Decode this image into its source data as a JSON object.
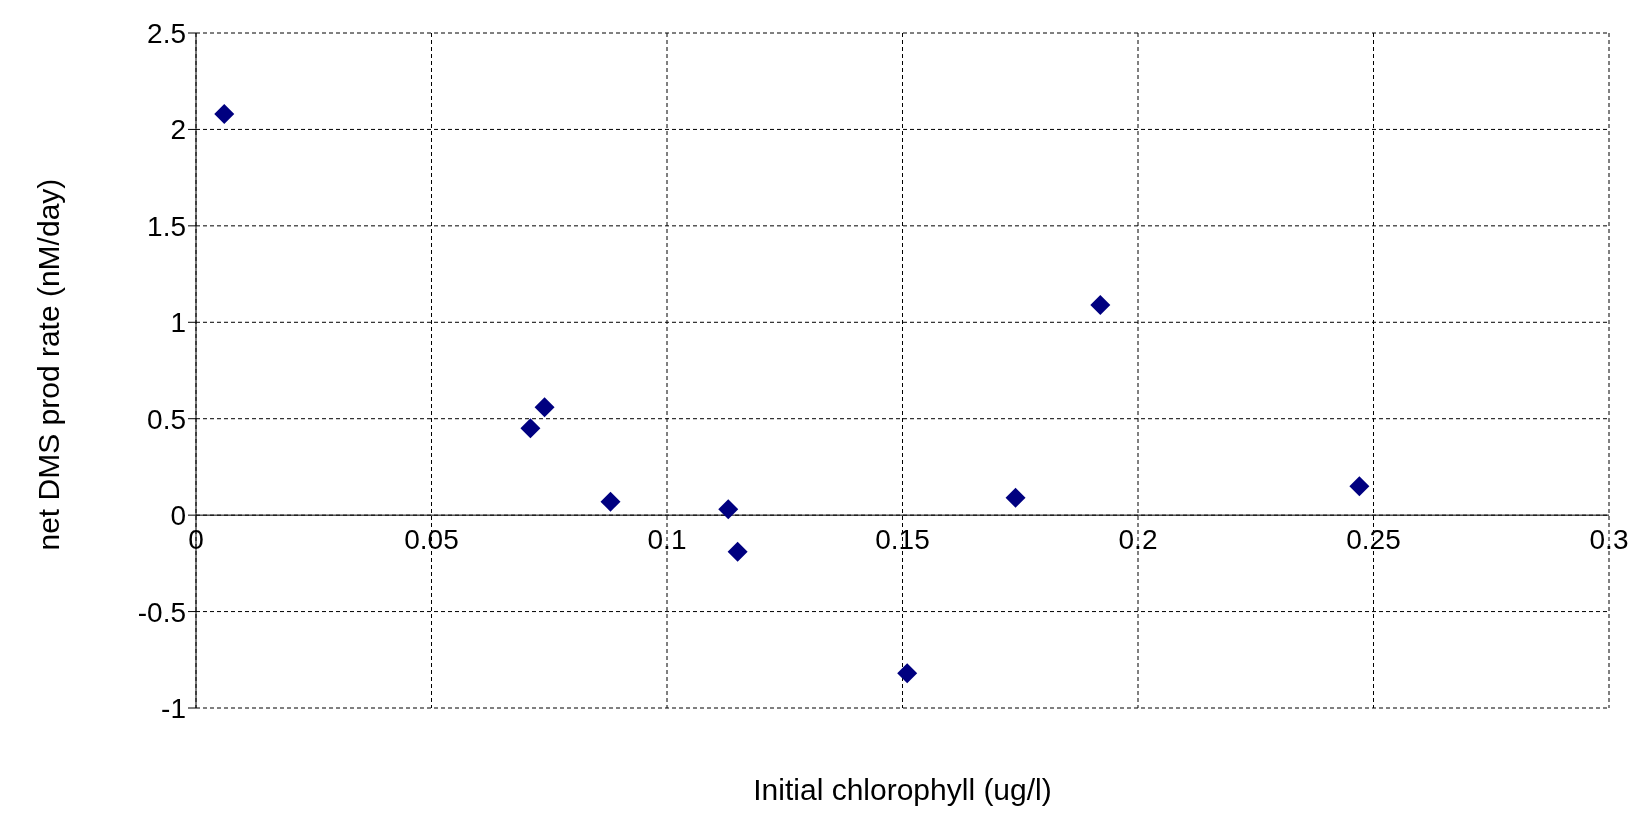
{
  "chart_data": {
    "type": "scatter",
    "xlabel": "Initial chlorophyll (ug/l)",
    "ylabel": "net DMS prod rate (nM/day)",
    "x": [
      0.006,
      0.071,
      0.074,
      0.088,
      0.113,
      0.115,
      0.151,
      0.174,
      0.192,
      0.247
    ],
    "values": [
      2.08,
      0.45,
      0.56,
      0.07,
      0.03,
      -0.19,
      -0.82,
      0.09,
      1.09,
      0.15
    ],
    "color": "#000080",
    "marker": "diamond",
    "xlim": [
      0,
      0.3
    ],
    "xticks": [
      0,
      0.05,
      0.1,
      0.15,
      0.2,
      0.25,
      0.3
    ],
    "ylim": [
      -1,
      2.5
    ],
    "yticks": [
      -1,
      -0.5,
      0,
      0.5,
      1,
      1.5,
      2,
      2.5
    ],
    "grid": true
  }
}
